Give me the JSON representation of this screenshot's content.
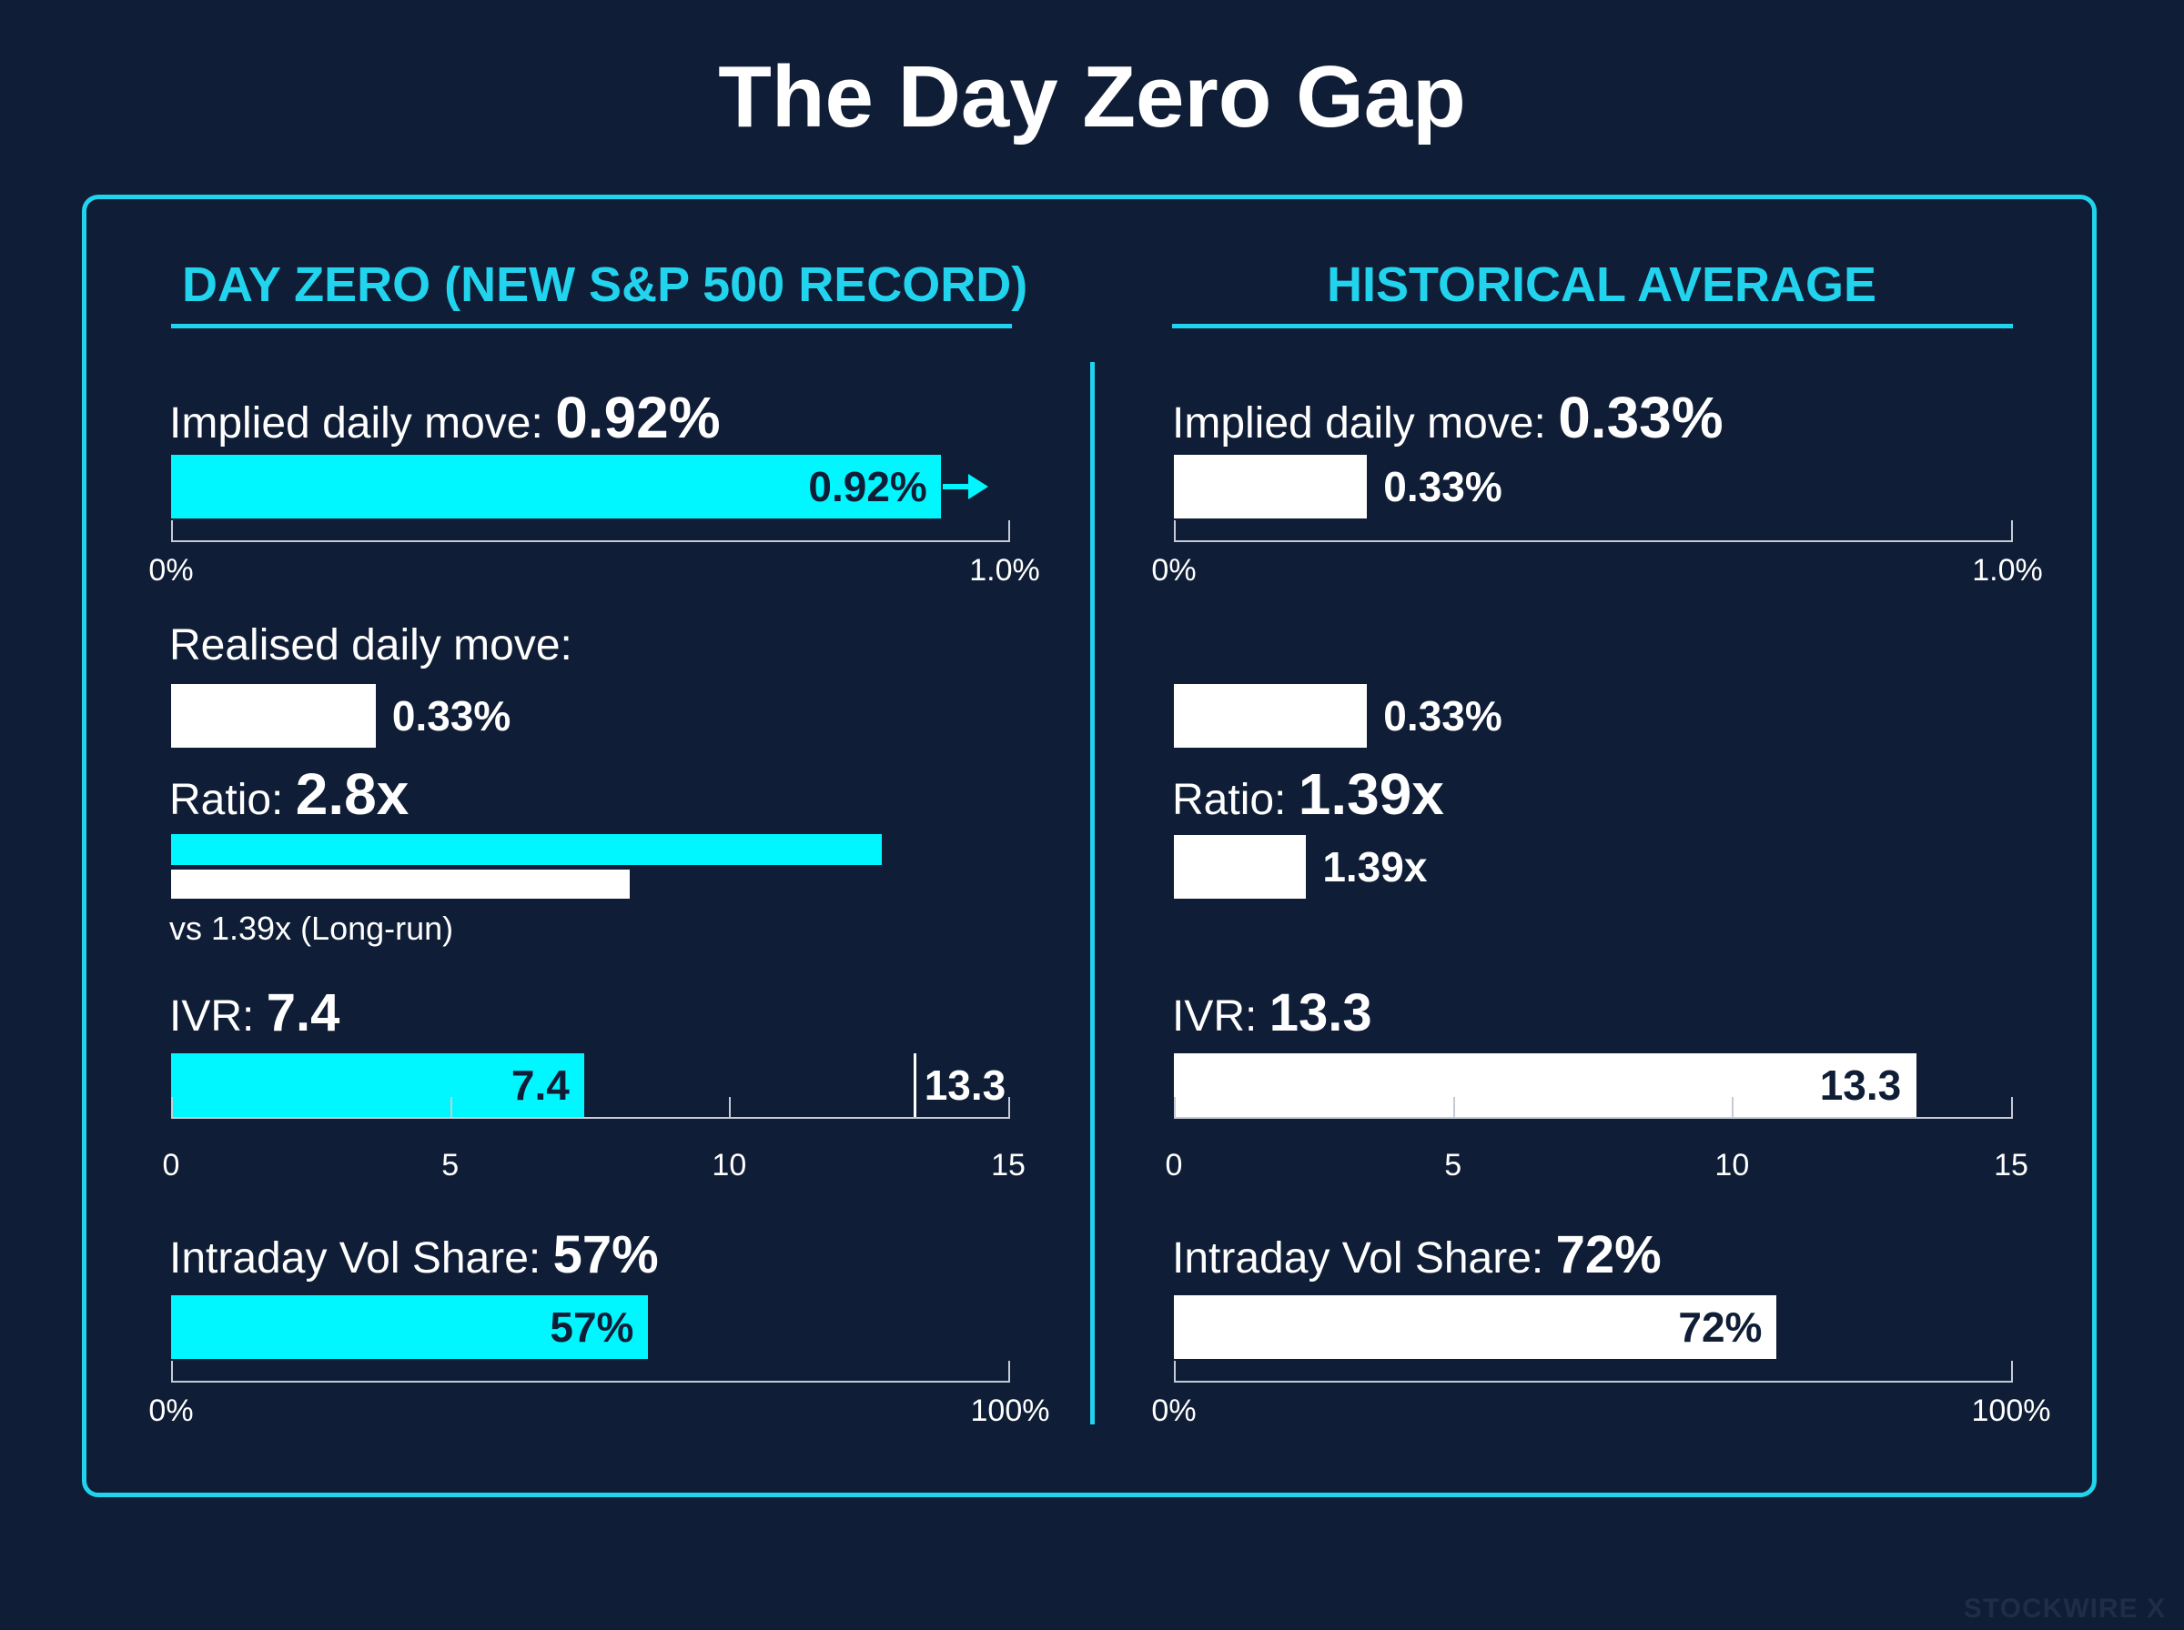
{
  "title": "The Day Zero Gap",
  "watermark": "STOCKWIRE X",
  "colors": {
    "background": "#0f1d36",
    "accent": "#22d3ee",
    "bar_day_zero": "#00f7ff",
    "bar_historical": "#ffffff"
  },
  "chart_data": {
    "type": "bar",
    "title": "The Day Zero Gap",
    "panels": [
      {
        "header": "DAY ZERO (NEW S&P 500 RECORD)",
        "implied": {
          "label": "Implied daily move:",
          "value_text": "0.92%",
          "value": 0.92,
          "bar_label": "0.92%",
          "axis_min": 0,
          "axis_max": 1.0,
          "tick_min": "0%",
          "tick_max": "1.0%"
        },
        "realised": {
          "label": "Realised daily move:",
          "value": 0.33,
          "bar_label": "0.33%"
        },
        "ratio": {
          "label": "Ratio:",
          "value_text": "2.8x",
          "value": 2.8,
          "compare_value": 1.39,
          "note": "vs 1.39x (Long-run)"
        },
        "ivr": {
          "label": "IVR:",
          "value_text": "7.4",
          "value": 7.4,
          "bar_label": "7.4",
          "marker_value": 13.3,
          "marker_label": "13.3",
          "axis_min": 0,
          "axis_max": 15,
          "ticks": [
            "0",
            "5",
            "10",
            "15"
          ]
        },
        "intraday": {
          "label": "Intraday Vol Share:",
          "value_text": "57%",
          "value": 57,
          "bar_label": "57%",
          "axis_min": 0,
          "axis_max": 100,
          "tick_min": "0%",
          "tick_max": "100%"
        }
      },
      {
        "header": "HISTORICAL AVERAGE",
        "implied": {
          "label": "Implied daily move:",
          "value_text": "0.33%",
          "value": 0.33,
          "bar_label": "0.33%",
          "axis_min": 0,
          "axis_max": 1.0,
          "tick_min": "0%",
          "tick_max": "1.0%"
        },
        "realised": {
          "value": 0.33,
          "bar_label": "0.33%"
        },
        "ratio": {
          "label": "Ratio:",
          "value_text": "1.39x",
          "value": 1.39,
          "bar_label": "1.39x"
        },
        "ivr": {
          "label": "IVR:",
          "value_text": "13.3",
          "value": 13.3,
          "bar_label": "13.3",
          "axis_min": 0,
          "axis_max": 15,
          "ticks": [
            "0",
            "5",
            "10",
            "15"
          ]
        },
        "intraday": {
          "label": "Intraday Vol Share:",
          "value_text": "72%",
          "value": 72,
          "bar_label": "72%",
          "axis_min": 0,
          "axis_max": 100,
          "tick_min": "0%",
          "tick_max": "100%"
        }
      }
    ]
  }
}
